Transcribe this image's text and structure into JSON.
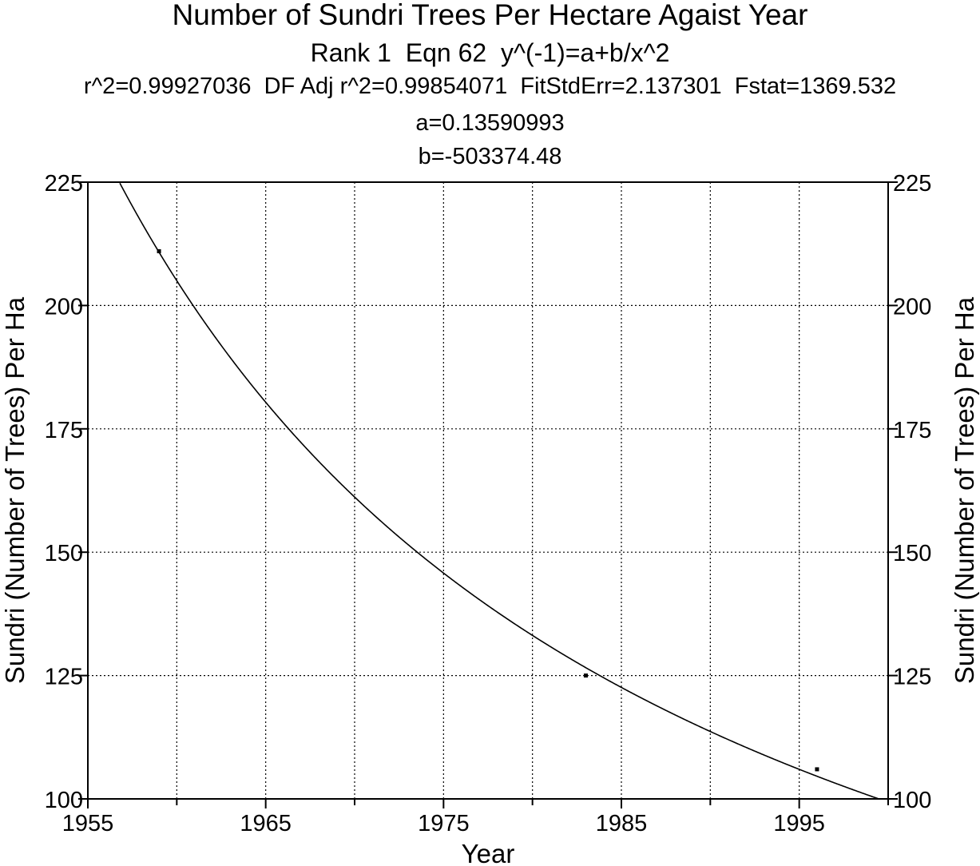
{
  "chart_data": {
    "type": "line",
    "title": "Number of Sundri Trees Per Hectare Agaist Year",
    "subtitle_lines": [
      "Rank 1  Eqn 62  y^(-1)=a+b/x^2",
      "r^2=0.99927036  DF Adj r^2=0.99854071  FitStdErr=2.137301  Fstat=1369.532",
      "a=0.13590993",
      "b=-503374.48"
    ],
    "xlabel": "Year",
    "ylabel": "Sundri (Number of Trees) Per Ha",
    "ylabel_right": "Sundri (Number of Trees) Per Ha",
    "xlim": [
      1955,
      2000
    ],
    "ylim": [
      100,
      225
    ],
    "x_ticks": [
      "1955",
      "1965",
      "1975",
      "1985",
      "1995"
    ],
    "y_ticks": [
      "100",
      "125",
      "150",
      "175",
      "200",
      "225"
    ],
    "grid": true,
    "fit": {
      "equation": "y^(-1)=a+b/x^2",
      "a": 0.13590993,
      "b": -503374.48
    },
    "series": [
      {
        "points": [
          [
            1959,
            211
          ],
          [
            1983,
            125
          ],
          [
            1996,
            106
          ]
        ]
      }
    ],
    "colors": {
      "line": "#000000",
      "grid": "#000000",
      "background": "#ffffff"
    }
  }
}
